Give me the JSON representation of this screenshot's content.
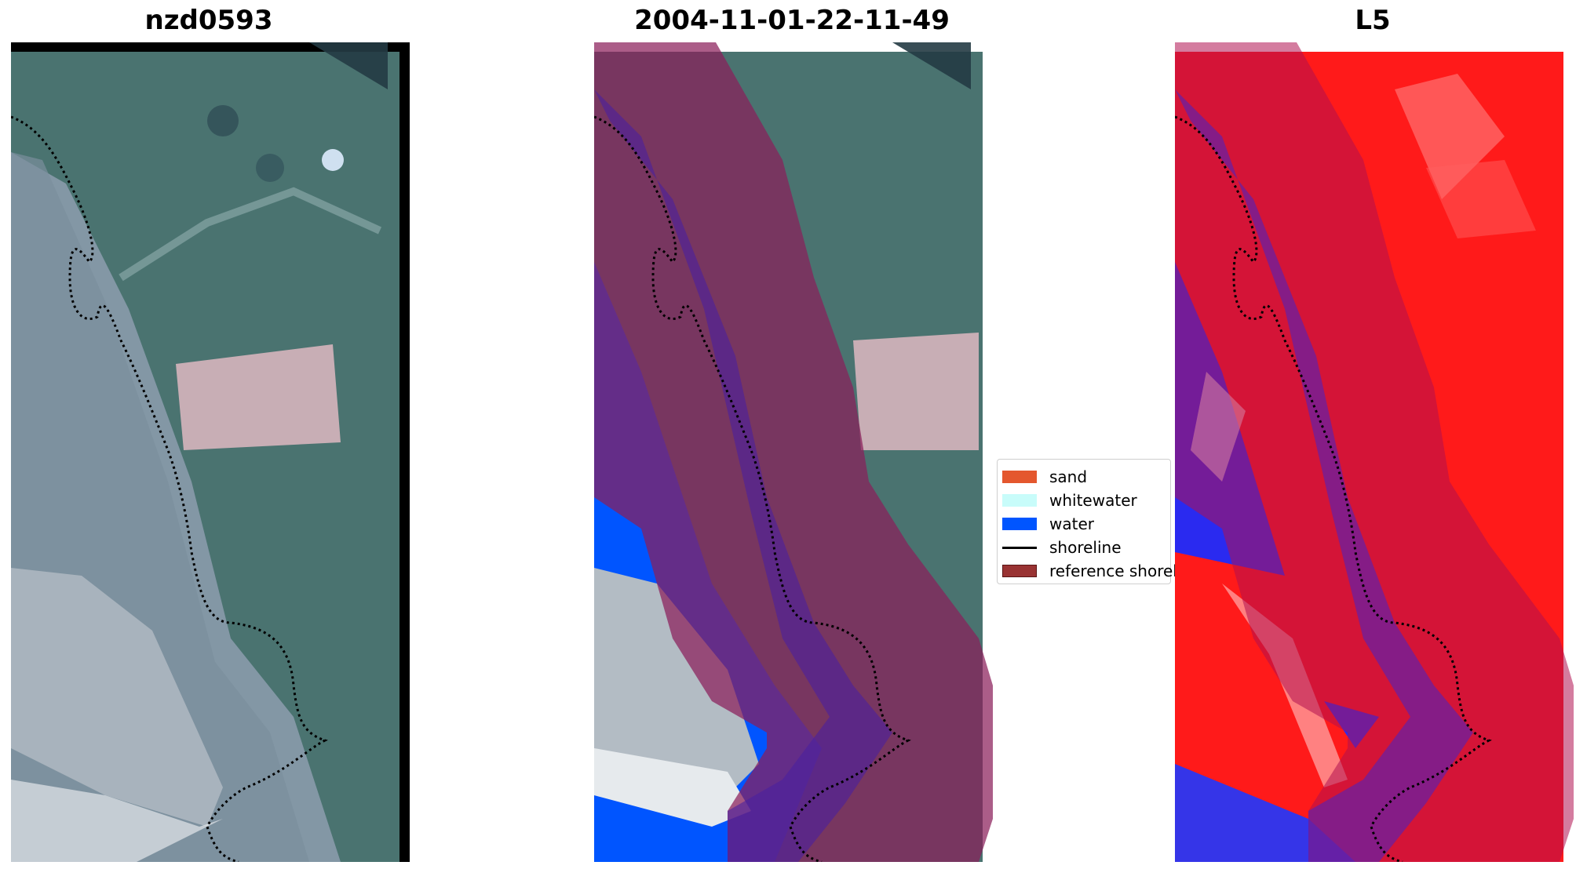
{
  "panels": [
    {
      "title": "nzd0593"
    },
    {
      "title": "2004-11-01-22-11-49"
    },
    {
      "title": "L5"
    }
  ],
  "legend": {
    "items": [
      {
        "label": "sand",
        "color": "#e4572e",
        "kind": "patch"
      },
      {
        "label": "whitewater",
        "color": "#c8fcfa",
        "kind": "patch"
      },
      {
        "label": "water",
        "color": "#0055ff",
        "kind": "patch"
      },
      {
        "label": "shoreline",
        "color": "#000000",
        "kind": "line"
      },
      {
        "label": "reference shoreline buffer",
        "color": "#993333",
        "kind": "patch"
      }
    ]
  },
  "colors": {
    "vegetation": "#4a7370",
    "dark_vegetation": "#2f5a57",
    "beach": "#9aa9b8",
    "field": "#c8aeb5",
    "buffer_overlay": "#8a1f5a",
    "water_classified": "#0055ff",
    "l5_land": "#ff1a1a",
    "l5_water": "#2a2af0"
  }
}
